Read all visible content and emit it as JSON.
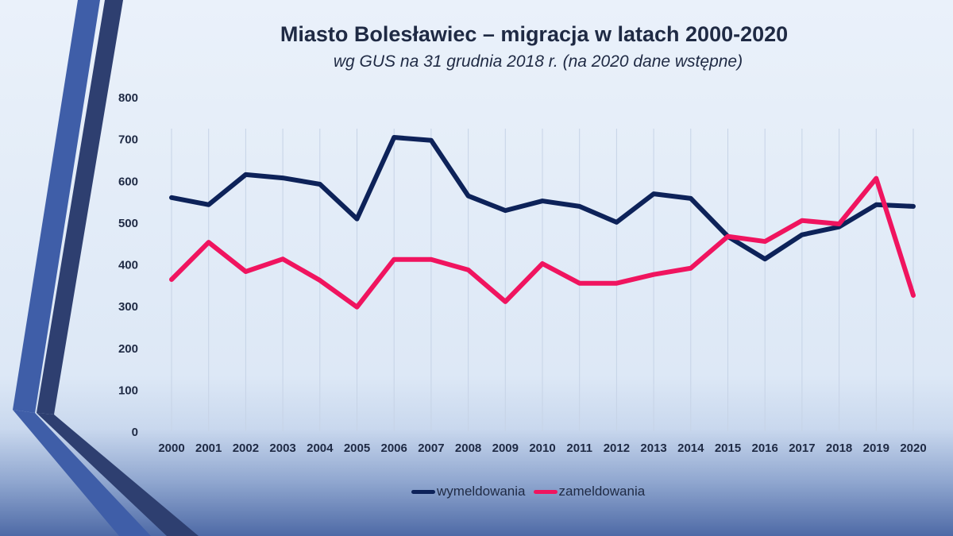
{
  "chart_data": {
    "type": "line",
    "title": "Miasto Bolesławiec – migracja w latach 2000-2020",
    "subtitle": "wg GUS na 31 grudnia 2018 r. (na 2020 dane wstępne)",
    "xlabel": "",
    "ylabel": "",
    "ylim": [
      0,
      800
    ],
    "yticks": [
      0,
      100,
      200,
      300,
      400,
      500,
      600,
      700,
      800
    ],
    "grid": "vertical",
    "legend": "bottom",
    "categories": [
      "2000",
      "2001",
      "2002",
      "2003",
      "2004",
      "2005",
      "2006",
      "2007",
      "2008",
      "2009",
      "2010",
      "2011",
      "2012",
      "2013",
      "2014",
      "2015",
      "2016",
      "2017",
      "2018",
      "2019",
      "2020"
    ],
    "series": [
      {
        "name": "wymeldowania",
        "color": "#0d2259",
        "values": [
          559,
          542,
          614,
          606,
          591,
          508,
          703,
          696,
          563,
          528,
          551,
          538,
          500,
          568,
          557,
          466,
          412,
          470,
          489,
          542,
          538
        ]
      },
      {
        "name": "zameldowania",
        "color": "#f0145f",
        "values": [
          363,
          452,
          382,
          412,
          361,
          297,
          411,
          411,
          386,
          310,
          401,
          354,
          354,
          375,
          390,
          466,
          454,
          504,
          496,
          605,
          325
        ]
      }
    ]
  }
}
